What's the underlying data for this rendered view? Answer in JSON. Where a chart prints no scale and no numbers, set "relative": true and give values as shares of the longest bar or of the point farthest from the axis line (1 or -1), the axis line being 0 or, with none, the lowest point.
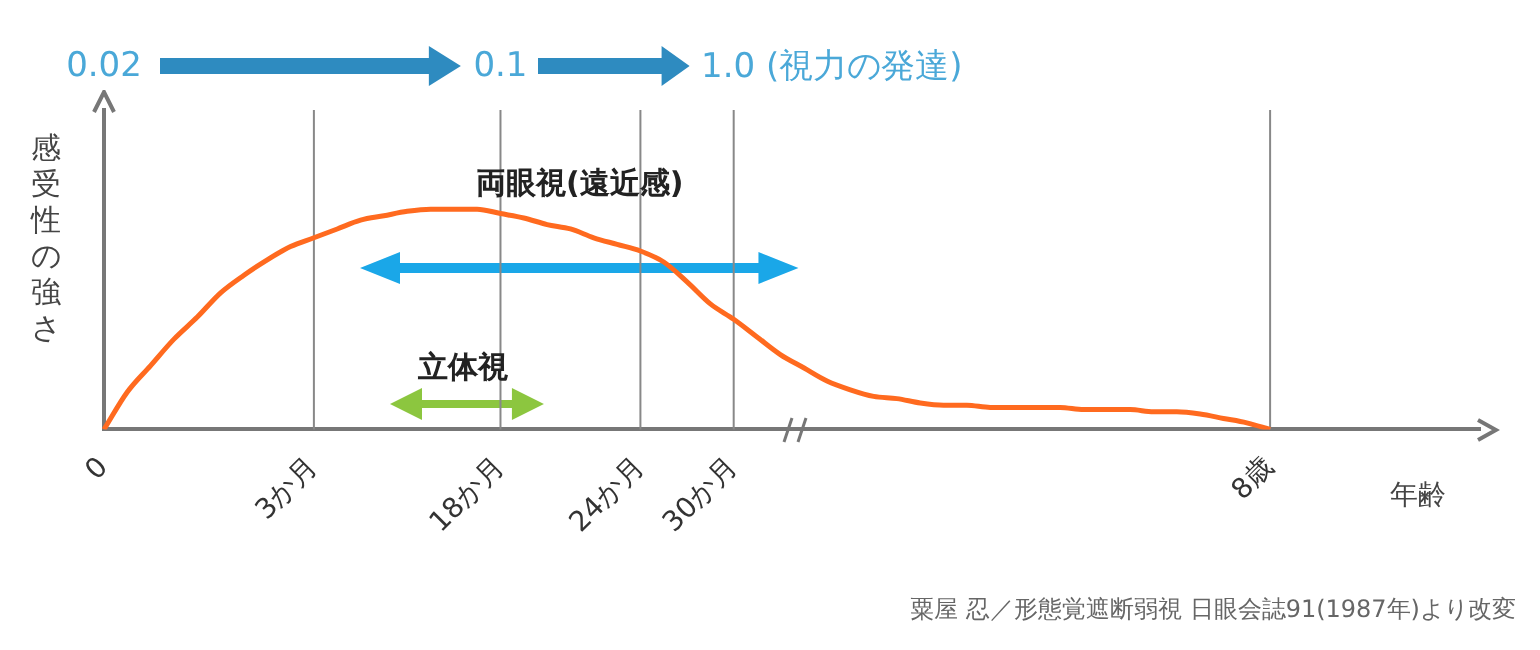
{
  "chart_data": {
    "type": "line",
    "relative": true,
    "ylabel": "感受性の強さ",
    "xlabel": "年齢",
    "categories": [
      "0",
      null,
      null,
      null,
      null,
      null,
      null,
      null,
      null,
      "3か月",
      null,
      null,
      null,
      null,
      null,
      null,
      null,
      "18か月",
      null,
      null,
      null,
      null,
      null,
      "24か月",
      null,
      null,
      null,
      "30か月",
      null,
      null,
      null,
      null,
      null,
      null,
      null,
      null,
      null,
      null,
      null,
      null,
      null,
      null,
      null,
      null,
      null,
      null,
      null,
      null,
      null,
      null,
      "8歳",
      null,
      null,
      null,
      null,
      null,
      null,
      null,
      null,
      null
    ],
    "series": [
      {
        "color": "#ff6a1f",
        "values": [
          0,
          0.17,
          0.29,
          0.41,
          0.51,
          0.62,
          0.7,
          0.77,
          0.83,
          0.87,
          0.91,
          0.95,
          0.97,
          0.99,
          1,
          1,
          1,
          0.98,
          0.96,
          0.93,
          0.91,
          0.87,
          0.84,
          0.81,
          0.76,
          0.67,
          0.57,
          0.5,
          0.42,
          0.34,
          0.28,
          0.22,
          0.18,
          0.15,
          0.14,
          0.12,
          0.11,
          0.11,
          0.1,
          0.1,
          0.1,
          0.1,
          0.09,
          0.09,
          0.09,
          0.08,
          0.08,
          0.07,
          0.05,
          0.03,
          0,
          null,
          null,
          null,
          null,
          null,
          null,
          null,
          null,
          null
        ]
      }
    ],
    "ref_lines": [
      {
        "axis": "x",
        "value": "3か月",
        "color": "#888888"
      },
      {
        "axis": "x",
        "value": "18か月",
        "color": "#888888"
      },
      {
        "axis": "x",
        "value": "24か月",
        "color": "#888888"
      },
      {
        "axis": "x",
        "value": "30か月",
        "color": "#888888"
      },
      {
        "axis": "x",
        "value": "8歳",
        "color": "#888888"
      }
    ],
    "annotations": [
      "0.02",
      "0.1",
      "1.0 (視力の発達)",
      "両眼視(遠近感)",
      "立体視",
      "粟屋 忍／形態覚遮断弱視 日眼会誌91(1987年)より改変"
    ],
    "grid": false,
    "legend": false,
    "marker": "none",
    "line_style": "solid"
  }
}
